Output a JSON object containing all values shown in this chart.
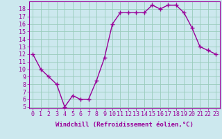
{
  "x": [
    0,
    1,
    2,
    3,
    4,
    5,
    6,
    7,
    8,
    9,
    10,
    11,
    12,
    13,
    14,
    15,
    16,
    17,
    18,
    19,
    20,
    21,
    22,
    23
  ],
  "y": [
    12,
    10,
    9,
    8,
    5,
    6.5,
    6,
    6,
    8.5,
    11.5,
    16,
    17.5,
    17.5,
    17.5,
    17.5,
    18.5,
    18,
    18.5,
    18.5,
    17.5,
    15.5,
    13,
    12.5,
    12
  ],
  "line_color": "#990099",
  "marker": "+",
  "markersize": 4,
  "linewidth": 1,
  "background_color": "#cce8ee",
  "grid_color": "#99ccbb",
  "xlabel": "Windchill (Refroidissement éolien,°C)",
  "xlabel_color": "#990099",
  "tick_color": "#990099",
  "ylim": [
    4.8,
    19.0
  ],
  "xlim": [
    -0.5,
    23.5
  ],
  "yticks": [
    5,
    6,
    7,
    8,
    9,
    10,
    11,
    12,
    13,
    14,
    15,
    16,
    17,
    18
  ],
  "xticks": [
    0,
    1,
    2,
    3,
    4,
    5,
    6,
    7,
    8,
    9,
    10,
    11,
    12,
    13,
    14,
    15,
    16,
    17,
    18,
    19,
    20,
    21,
    22,
    23
  ],
  "xlabel_fontsize": 6.5,
  "tick_fontsize": 6
}
